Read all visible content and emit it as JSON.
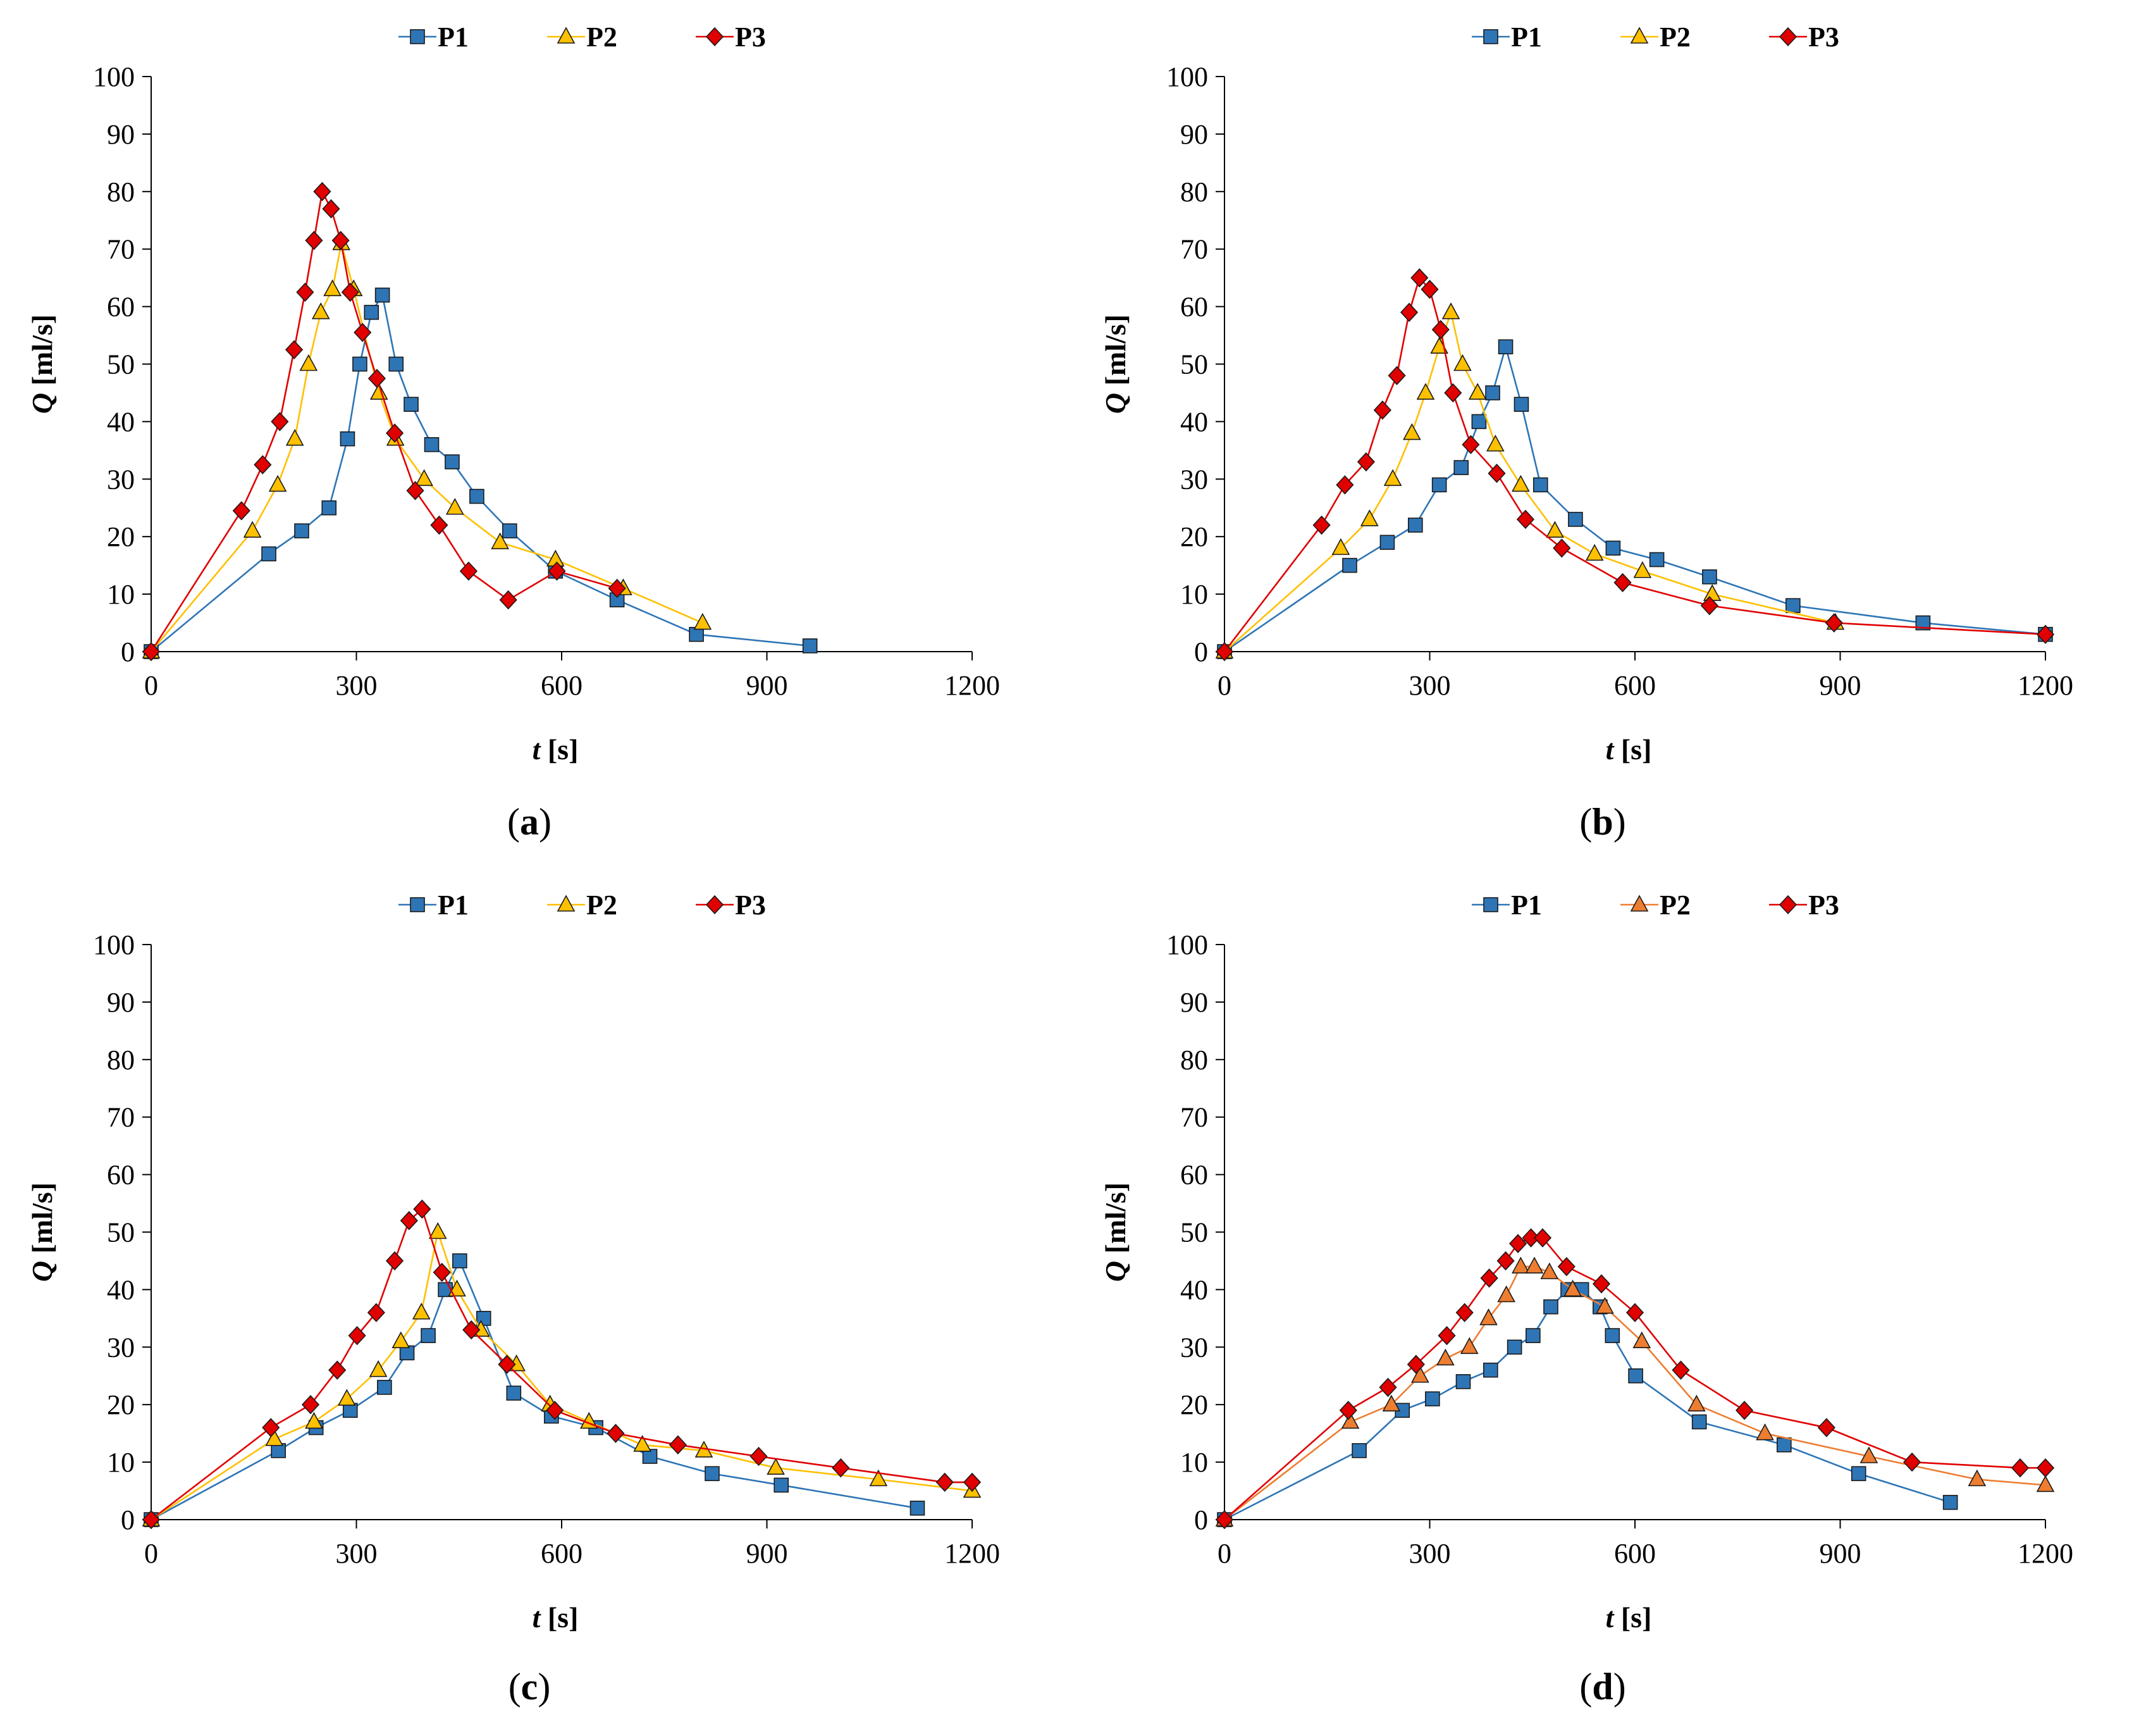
{
  "colors": {
    "P1": "#2e75b6",
    "P2": "#ffc000",
    "P2_d": "#ed7d31",
    "P3": "#e00000"
  },
  "chart_data": [
    {
      "type": "line",
      "panel_label": "a",
      "xlabel_var": "t",
      "xlabel_unit": " [s]",
      "ylabel_var": "Q",
      "ylabel_unit": " [ml/s]",
      "xlim": [
        0,
        1200
      ],
      "ylim": [
        0,
        100
      ],
      "xticks": [
        "0",
        "300",
        "600",
        "900",
        "1200"
      ],
      "yticks": [
        "0",
        "10",
        "20",
        "30",
        "40",
        "50",
        "60",
        "70",
        "80",
        "90",
        "100"
      ],
      "legend_position": "top-center",
      "series": [
        {
          "name": "P1",
          "marker": "square",
          "color": "#2e75b6",
          "x": [
            0,
            172,
            220,
            260,
            287,
            305,
            322,
            338,
            358,
            380,
            410,
            440,
            476,
            524,
            591,
            681,
            797,
            963
          ],
          "y": [
            0,
            17,
            21,
            25,
            37,
            50,
            59,
            62,
            50,
            43,
            36,
            33,
            27,
            21,
            14,
            9,
            3,
            1
          ]
        },
        {
          "name": "P2",
          "marker": "triangle",
          "color": "#ffc000",
          "x": [
            0,
            148,
            185,
            210,
            230,
            248,
            265,
            278,
            296,
            333,
            357,
            399,
            444,
            510,
            591,
            690,
            806
          ],
          "y": [
            0,
            21,
            29,
            37,
            50,
            59,
            63,
            71,
            63,
            45,
            37,
            30,
            25,
            19,
            16,
            11,
            5
          ]
        },
        {
          "name": "P3",
          "marker": "diamond",
          "color": "#e00000",
          "x": [
            0,
            132,
            163,
            188,
            209,
            225,
            238,
            250,
            263,
            277,
            291,
            309,
            330,
            356,
            386,
            421,
            464,
            522,
            593,
            681
          ],
          "y": [
            0,
            24.5,
            32.5,
            40,
            52.5,
            62.5,
            71.5,
            80,
            77,
            71.5,
            62.5,
            55.5,
            47.5,
            38,
            28,
            22,
            14,
            9,
            14,
            11
          ]
        }
      ]
    },
    {
      "type": "line",
      "panel_label": "b",
      "xlabel_var": "t",
      "xlabel_unit": " [s]",
      "ylabel_var": "Q",
      "ylabel_unit": " [ml/s]",
      "xlim": [
        0,
        1200
      ],
      "ylim": [
        0,
        100
      ],
      "xticks": [
        "0",
        "300",
        "600",
        "900",
        "1200"
      ],
      "yticks": [
        "0",
        "10",
        "20",
        "30",
        "40",
        "50",
        "60",
        "70",
        "80",
        "90",
        "100"
      ],
      "legend_position": "top-center",
      "series": [
        {
          "name": "P1",
          "marker": "square",
          "color": "#2e75b6",
          "x": [
            0,
            183,
            238,
            279,
            314,
            346,
            372,
            392,
            411,
            434,
            462,
            513,
            568,
            632,
            709,
            831,
            1021,
            1200
          ],
          "y": [
            0,
            15,
            19,
            22,
            29,
            32,
            40,
            45,
            53,
            43,
            29,
            23,
            18,
            16,
            13,
            8,
            5,
            3
          ]
        },
        {
          "name": "P2",
          "marker": "triangle",
          "color": "#ffc000",
          "x": [
            0,
            170,
            212,
            246,
            274,
            294,
            314,
            331,
            348,
            370,
            396,
            433,
            483,
            541,
            611,
            713,
            893
          ],
          "y": [
            0,
            18,
            23,
            30,
            38,
            45,
            53,
            59,
            50,
            45,
            36,
            29,
            21,
            17,
            14,
            10,
            5
          ]
        },
        {
          "name": "P3",
          "marker": "diamond",
          "color": "#e00000",
          "x": [
            0,
            142,
            176,
            207,
            231,
            252,
            270,
            285,
            300,
            316,
            334,
            360,
            398,
            440,
            493,
            582,
            709,
            891,
            1200
          ],
          "y": [
            0,
            22,
            29,
            33,
            42,
            48,
            59,
            65,
            63,
            56,
            45,
            36,
            31,
            23,
            18,
            12,
            8,
            5,
            3
          ]
        }
      ]
    },
    {
      "type": "line",
      "panel_label": "c",
      "xlabel_var": "t",
      "xlabel_unit": " [s]",
      "ylabel_var": "Q",
      "ylabel_unit": " [ml/s]",
      "xlim": [
        0,
        1200
      ],
      "ylim": [
        0,
        100
      ],
      "xticks": [
        "0",
        "300",
        "600",
        "900",
        "1200"
      ],
      "yticks": [
        "0",
        "10",
        "20",
        "30",
        "40",
        "50",
        "60",
        "70",
        "80",
        "90",
        "100"
      ],
      "legend_position": "top-center",
      "series": [
        {
          "name": "P1",
          "marker": "square",
          "color": "#2e75b6",
          "x": [
            0,
            186,
            241,
            291,
            341,
            374,
            405,
            430,
            451,
            486,
            530,
            585,
            650,
            729,
            820,
            921,
            1120
          ],
          "y": [
            0,
            12,
            16,
            19,
            23,
            29,
            32,
            40,
            45,
            35,
            22,
            18,
            16,
            11,
            8,
            6,
            2
          ]
        },
        {
          "name": "P2",
          "marker": "triangle",
          "color": "#ffc000",
          "x": [
            0,
            180,
            238,
            286,
            332,
            365,
            395,
            419,
            447,
            482,
            534,
            583,
            640,
            718,
            808,
            913,
            1063,
            1200
          ],
          "y": [
            0,
            14,
            17,
            21,
            26,
            31,
            36,
            50,
            40,
            33,
            27,
            20,
            17,
            13,
            12,
            9,
            7,
            5
          ]
        },
        {
          "name": "P3",
          "marker": "diamond",
          "color": "#e00000",
          "x": [
            0,
            175,
            233,
            272,
            301,
            329,
            356,
            377,
            396,
            425,
            468,
            520,
            590,
            679,
            770,
            888,
            1008,
            1160,
            1200
          ],
          "y": [
            0,
            16,
            20,
            26,
            32,
            36,
            45,
            52,
            54,
            43,
            33,
            27,
            19,
            15,
            13,
            11,
            9,
            6.5,
            6.5
          ]
        }
      ]
    },
    {
      "type": "line",
      "panel_label": "d",
      "xlabel_var": "t",
      "xlabel_unit": " [s]",
      "ylabel_var": "Q",
      "ylabel_unit": " [ml/s]",
      "xlim": [
        0,
        1200
      ],
      "ylim": [
        0,
        100
      ],
      "xticks": [
        "0",
        "300",
        "600",
        "900",
        "1200"
      ],
      "yticks": [
        "0",
        "10",
        "20",
        "30",
        "40",
        "50",
        "60",
        "70",
        "80",
        "90",
        "100"
      ],
      "legend_position": "top-center",
      "series": [
        {
          "name": "P1",
          "marker": "square",
          "color": "#2e75b6",
          "x": [
            0,
            197,
            260,
            304,
            349,
            389,
            424,
            451,
            477,
            502,
            522,
            549,
            567,
            601,
            694,
            818,
            927,
            1061
          ],
          "y": [
            0,
            12,
            19,
            21,
            24,
            26,
            30,
            32,
            37,
            40,
            40,
            37,
            32,
            25,
            17,
            13,
            8,
            3
          ]
        },
        {
          "name": "P2",
          "marker": "triangle",
          "color": "#ed7d31",
          "x": [
            0,
            184,
            244,
            286,
            323,
            358,
            386,
            412,
            433,
            453,
            475,
            509,
            556,
            610,
            690,
            790,
            942,
            1100,
            1200
          ],
          "y": [
            0,
            17,
            20,
            25,
            28,
            30,
            35,
            39,
            44,
            44,
            43,
            40,
            37,
            31,
            20,
            15,
            11,
            7,
            6
          ]
        },
        {
          "name": "P3",
          "marker": "diamond",
          "color": "#e00000",
          "x": [
            0,
            181,
            239,
            280,
            325,
            351,
            387,
            411,
            429,
            448,
            465,
            500,
            551,
            600,
            667,
            760,
            880,
            1005,
            1163,
            1200
          ],
          "y": [
            0,
            19,
            23,
            27,
            32,
            36,
            42,
            45,
            48,
            49,
            49,
            44,
            41,
            36,
            26,
            19,
            16,
            10,
            9,
            9
          ]
        }
      ]
    }
  ]
}
